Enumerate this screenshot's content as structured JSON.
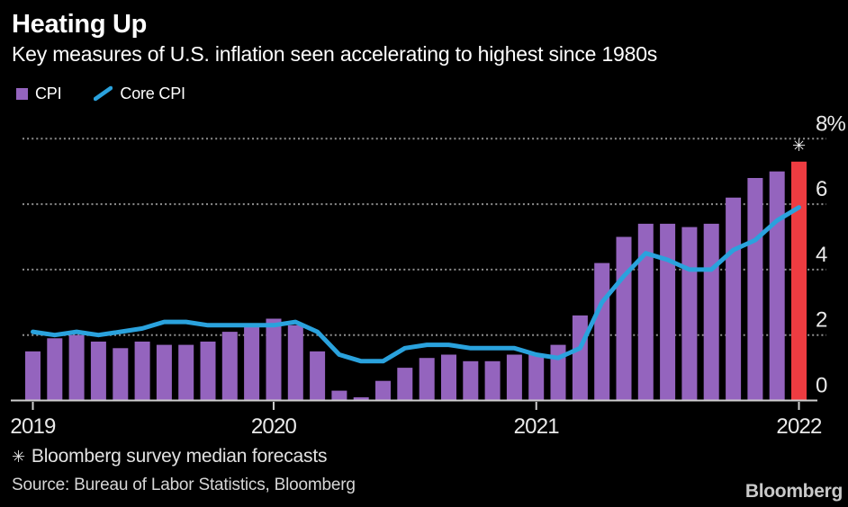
{
  "header": {
    "title": "Heating Up",
    "subtitle": "Key measures of U.S. inflation seen accelerating to highest since 1980s"
  },
  "legend": {
    "items": [
      {
        "label": "CPI",
        "swatch": "square",
        "color": "#9464be"
      },
      {
        "label": "Core CPI",
        "swatch": "line",
        "color": "#2aa2dd"
      }
    ]
  },
  "chart_data": {
    "type": "bar+line",
    "title": "Heating Up",
    "subtitle": "Key measures of U.S. inflation seen accelerating to highest since 1980s",
    "ylim": [
      0,
      8
    ],
    "grid": "dotted horizontal gridlines, labels on right",
    "legend_position": "top-left",
    "x_months": [
      "Feb 2019",
      "Mar 2019",
      "Apr 2019",
      "May 2019",
      "Jun 2019",
      "Jul 2019",
      "Aug 2019",
      "Sep 2019",
      "Oct 2019",
      "Nov 2019",
      "Dec 2019",
      "Jan 2020",
      "Feb 2020",
      "Mar 2020",
      "Apr 2020",
      "May 2020",
      "Jun 2020",
      "Jul 2020",
      "Aug 2020",
      "Sep 2020",
      "Oct 2020",
      "Nov 2020",
      "Dec 2020",
      "Jan 2021",
      "Feb 2021",
      "Mar 2021",
      "Apr 2021",
      "May 2021",
      "Jun 2021",
      "Jul 2021",
      "Aug 2021",
      "Sep 2021",
      "Oct 2021",
      "Nov 2021",
      "Dec 2021",
      "Jan 2022"
    ],
    "series": [
      {
        "name": "CPI",
        "type": "bar",
        "color": "#9464be",
        "values": [
          1.5,
          1.9,
          2.0,
          1.8,
          1.6,
          1.8,
          1.7,
          1.7,
          1.8,
          2.1,
          2.3,
          2.5,
          2.3,
          1.5,
          0.3,
          0.1,
          0.6,
          1.0,
          1.3,
          1.4,
          1.2,
          1.2,
          1.4,
          1.4,
          1.7,
          2.6,
          4.2,
          5.0,
          5.4,
          5.4,
          5.3,
          5.4,
          6.2,
          6.8,
          7.0,
          7.3
        ],
        "forecast": {
          "index": 35,
          "color": "#ee3c41",
          "marker": "✳"
        }
      },
      {
        "name": "Core CPI",
        "type": "line",
        "color": "#2aa2dd",
        "values": [
          2.1,
          2.0,
          2.1,
          2.0,
          2.1,
          2.2,
          2.4,
          2.4,
          2.3,
          2.3,
          2.3,
          2.3,
          2.4,
          2.1,
          1.4,
          1.2,
          1.2,
          1.6,
          1.7,
          1.7,
          1.6,
          1.6,
          1.6,
          1.4,
          1.3,
          1.6,
          3.0,
          3.8,
          4.5,
          4.3,
          4.0,
          4.0,
          4.6,
          4.9,
          5.5,
          5.9
        ]
      }
    ],
    "yticks": [
      {
        "label": "8%",
        "value": 8
      },
      {
        "label": "6",
        "value": 6
      },
      {
        "label": "4",
        "value": 4
      },
      {
        "label": "2",
        "value": 2
      },
      {
        "label": "0",
        "value": 0
      }
    ],
    "xticks": [
      {
        "label": "2019",
        "index": 0
      },
      {
        "label": "2020",
        "index": 11
      },
      {
        "label": "2021",
        "index": 23
      },
      {
        "label": "2022",
        "index": 35
      }
    ]
  },
  "footnote": {
    "symbol": "✳",
    "text": "Bloomberg survey median forecasts"
  },
  "source": {
    "text": "Source: Bureau of Labor Statistics, Bloomberg"
  },
  "branding": {
    "logo": "Bloomberg"
  }
}
